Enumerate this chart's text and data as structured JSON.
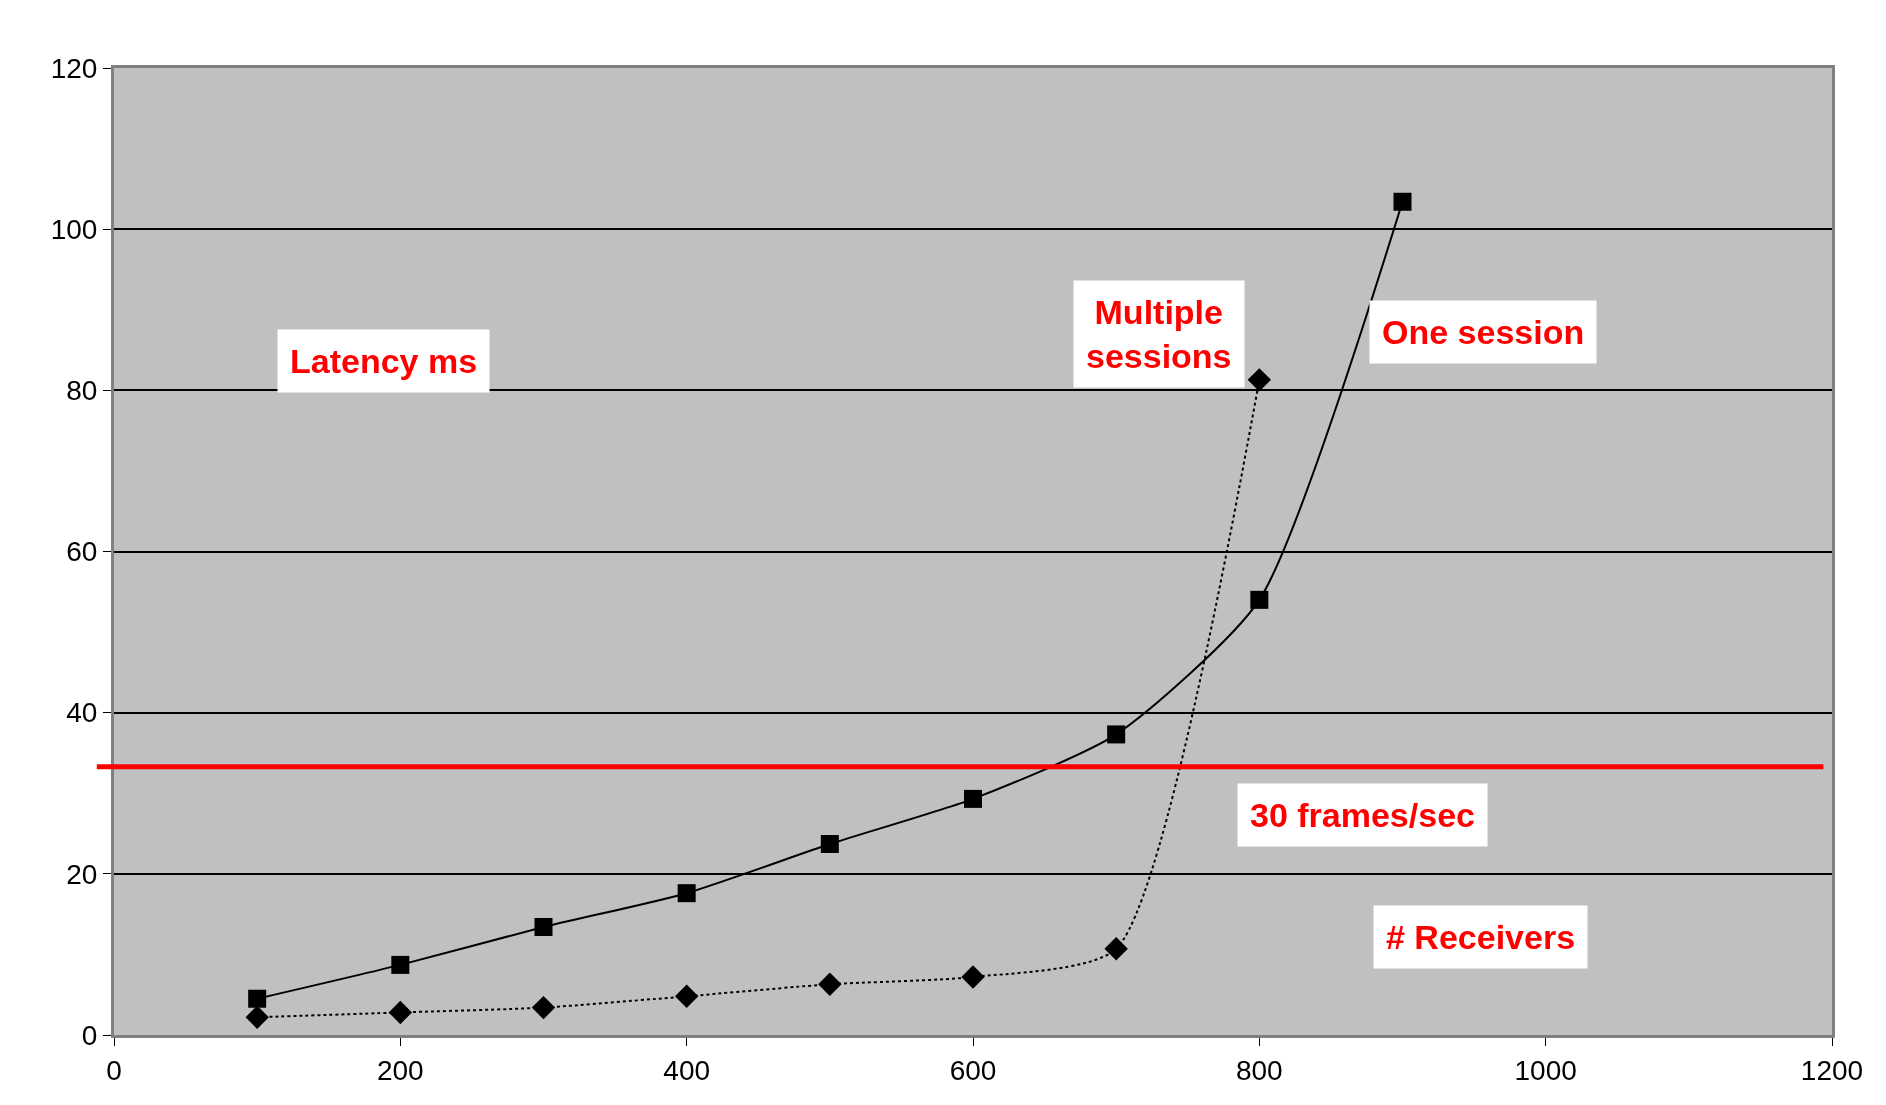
{
  "chart_data": {
    "type": "line",
    "xlabel": "# Receivers",
    "ylabel": "Latency ms",
    "xlim": [
      0,
      1200
    ],
    "xticks": [
      0,
      200,
      400,
      600,
      800,
      1000,
      1200
    ],
    "ylim": [
      0,
      120
    ],
    "yticks": [
      0,
      20,
      40,
      60,
      80,
      100,
      120
    ],
    "grid": "y",
    "legend": false,
    "series": [
      {
        "name": "One session",
        "color": "#000000",
        "marker": "square",
        "line_style": "solid",
        "x": [
          100,
          200,
          300,
          400,
          500,
          600,
          700,
          800,
          900
        ],
        "values": [
          4.5,
          8.7,
          13.4,
          17.6,
          23.7,
          29.3,
          37.3,
          54,
          103.4
        ]
      },
      {
        "name": "Multiple sessions",
        "color": "#000000",
        "marker": "diamond",
        "line_style": "dotted",
        "x": [
          100,
          200,
          300,
          400,
          500,
          600,
          700,
          800
        ],
        "values": [
          2.2,
          2.8,
          3.4,
          4.8,
          6.3,
          7.2,
          10.7,
          81.3
        ]
      }
    ],
    "ref_lines": [
      {
        "axis": "y",
        "value": 33.3,
        "label": "30 frames/sec",
        "color": "#ff0000",
        "line_style": "solid"
      }
    ]
  }
}
